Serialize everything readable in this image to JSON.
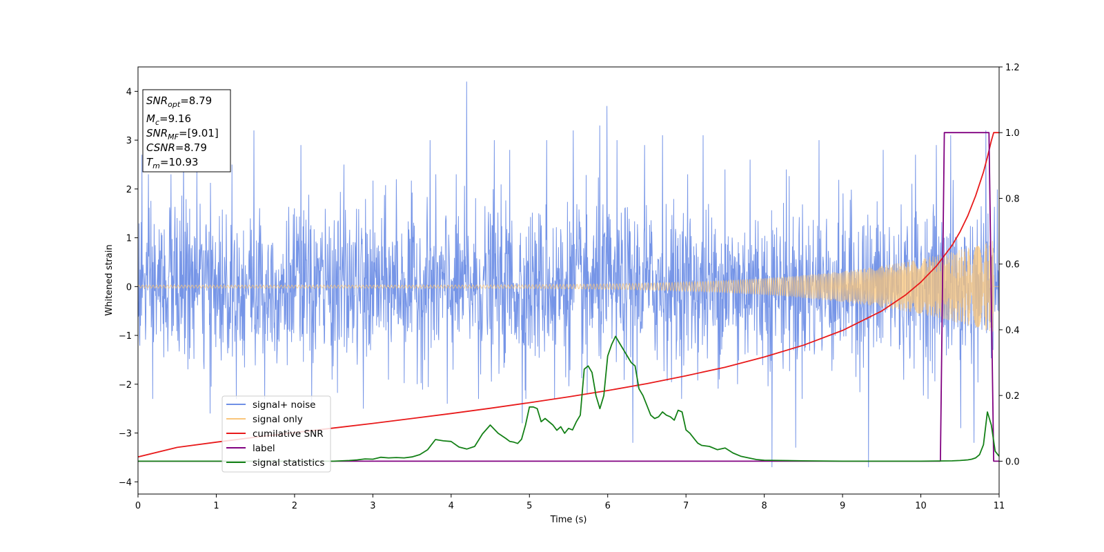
{
  "chart_data": {
    "type": "line",
    "title": "",
    "xlabel": "Time (s)",
    "ylabel": "Whitened strain",
    "xlim": [
      0,
      11
    ],
    "ylim": [
      -4.25,
      4.5
    ],
    "y2lim": [
      -0.1,
      1.2
    ],
    "x_ticks": [
      0,
      1,
      2,
      3,
      4,
      5,
      6,
      7,
      8,
      9,
      10,
      11
    ],
    "y_ticks": [
      -4,
      -3,
      -2,
      -1,
      0,
      1,
      2,
      3,
      4
    ],
    "y_tick_labels": [
      "−4",
      "−3",
      "−2",
      "−1",
      "0",
      "1",
      "2",
      "3",
      "4"
    ],
    "y2_ticks": [
      0.0,
      0.2,
      0.4,
      0.6,
      0.8,
      1.0,
      1.2
    ],
    "y2_tick_labels": [
      "0.0",
      "0.2",
      "0.4",
      "0.6",
      "0.8",
      "1.0",
      "1.2"
    ],
    "grid": false,
    "legend_position": "lower-left",
    "annotation": [
      {
        "base": "SNR",
        "sub": "opt",
        "value": "=8.79"
      },
      {
        "base": "M",
        "sub": "c",
        "value": "=9.16"
      },
      {
        "base": "SNR",
        "sub": "MF",
        "value": "=[9.01]"
      },
      {
        "base": "CSNR",
        "sub": "",
        "value": "=8.79"
      },
      {
        "base": "T",
        "sub": "m",
        "value": "=10.93"
      }
    ],
    "series": [
      {
        "name": "signal+ noise",
        "color": "#6f8fe6",
        "axis": "left",
        "kind": "noise",
        "noise_sigma": 0.8,
        "noise_band": [
          -1.8,
          1.8
        ],
        "spikes": [
          [
            0.05,
            2.7
          ],
          [
            0.19,
            -2.3
          ],
          [
            0.42,
            2.3
          ],
          [
            0.58,
            2.9
          ],
          [
            0.75,
            2.4
          ],
          [
            0.92,
            -2.6
          ],
          [
            1.2,
            2.5
          ],
          [
            1.48,
            3.2
          ],
          [
            1.62,
            -2.3
          ],
          [
            2.08,
            2.9
          ],
          [
            2.22,
            -2.4
          ],
          [
            2.63,
            2.5
          ],
          [
            2.88,
            -2.5
          ],
          [
            3.3,
            2.2
          ],
          [
            3.73,
            3.0
          ],
          [
            3.95,
            -2.4
          ],
          [
            4.2,
            4.2
          ],
          [
            4.35,
            -2.3
          ],
          [
            4.55,
            3.0
          ],
          [
            4.75,
            2.8
          ],
          [
            4.91,
            -2.8
          ],
          [
            5.22,
            3.0
          ],
          [
            5.32,
            -2.3
          ],
          [
            5.56,
            3.2
          ],
          [
            5.74,
            -2.2
          ],
          [
            5.9,
            3.3
          ],
          [
            5.99,
            3.7
          ],
          [
            6.12,
            3.0
          ],
          [
            6.32,
            -3.2
          ],
          [
            6.47,
            2.9
          ],
          [
            6.7,
            3.1
          ],
          [
            7.02,
            2.3
          ],
          [
            7.22,
            3.1
          ],
          [
            7.5,
            2.4
          ],
          [
            7.66,
            -2.0
          ],
          [
            7.82,
            2.6
          ],
          [
            8.1,
            -3.7
          ],
          [
            8.28,
            2.4
          ],
          [
            8.4,
            -3.3
          ],
          [
            8.7,
            3.0
          ],
          [
            9.33,
            -3.7
          ],
          [
            9.52,
            2.8
          ],
          [
            9.93,
            2.7
          ],
          [
            10.2,
            2.9
          ],
          [
            10.38,
            3.1
          ],
          [
            10.51,
            -2.9
          ],
          [
            10.68,
            -3.2
          ],
          [
            10.83,
            3.2
          ]
        ]
      },
      {
        "name": "signal only",
        "color": "#f9c57a",
        "axis": "left",
        "kind": "chirp",
        "amplitude_start": 0.03,
        "amplitude_end": 0.95,
        "end_x": 10.93
      },
      {
        "name": "cumilative SNR",
        "color": "#e8191a",
        "axis": "right",
        "x": [
          0,
          0.5,
          1,
          1.5,
          2,
          2.5,
          3,
          3.5,
          4,
          4.5,
          5,
          5.5,
          6,
          6.5,
          7,
          7.5,
          8,
          8.5,
          9,
          9.5,
          9.8,
          10,
          10.2,
          10.4,
          10.5,
          10.6,
          10.7,
          10.8,
          10.85,
          10.9,
          10.93,
          11
        ],
        "y": [
          0.013,
          0.042,
          0.058,
          0.073,
          0.087,
          0.101,
          0.115,
          0.13,
          0.145,
          0.161,
          0.178,
          0.196,
          0.215,
          0.236,
          0.26,
          0.286,
          0.317,
          0.353,
          0.398,
          0.457,
          0.505,
          0.545,
          0.594,
          0.657,
          0.698,
          0.747,
          0.808,
          0.88,
          0.925,
          0.975,
          1.0,
          1.0
        ]
      },
      {
        "name": "label",
        "color": "#800080",
        "axis": "right",
        "x": [
          0,
          10.25,
          10.3,
          10.87,
          10.93,
          11
        ],
        "y": [
          0,
          0,
          1,
          1,
          0,
          0
        ]
      },
      {
        "name": "signal statistics",
        "color": "#138016",
        "axis": "right",
        "x": [
          0,
          0.5,
          1,
          1.5,
          2,
          2.5,
          2.7,
          2.8,
          2.9,
          3.0,
          3.1,
          3.2,
          3.3,
          3.4,
          3.5,
          3.6,
          3.7,
          3.8,
          3.9,
          4.0,
          4.1,
          4.2,
          4.3,
          4.4,
          4.5,
          4.6,
          4.7,
          4.75,
          4.8,
          4.85,
          4.9,
          4.95,
          5.0,
          5.05,
          5.1,
          5.15,
          5.2,
          5.3,
          5.35,
          5.4,
          5.45,
          5.5,
          5.55,
          5.6,
          5.65,
          5.7,
          5.75,
          5.8,
          5.85,
          5.9,
          5.95,
          6.0,
          6.05,
          6.1,
          6.15,
          6.2,
          6.25,
          6.3,
          6.35,
          6.4,
          6.45,
          6.5,
          6.55,
          6.6,
          6.65,
          6.7,
          6.75,
          6.8,
          6.85,
          6.9,
          6.95,
          7.0,
          7.05,
          7.1,
          7.15,
          7.2,
          7.3,
          7.4,
          7.5,
          7.6,
          7.7,
          7.8,
          7.9,
          8.0,
          8.5,
          9.0,
          9.5,
          10.0,
          10.4,
          10.5,
          10.6,
          10.65,
          10.7,
          10.75,
          10.8,
          10.85,
          10.9,
          10.95,
          11
        ],
        "y": [
          0.0,
          0.0,
          0.0,
          0.0,
          0.0,
          0.0,
          0.002,
          0.004,
          0.007,
          0.006,
          0.012,
          0.01,
          0.011,
          0.01,
          0.013,
          0.02,
          0.035,
          0.066,
          0.062,
          0.06,
          0.043,
          0.037,
          0.045,
          0.083,
          0.11,
          0.085,
          0.069,
          0.06,
          0.058,
          0.054,
          0.067,
          0.11,
          0.165,
          0.165,
          0.16,
          0.12,
          0.13,
          0.11,
          0.094,
          0.105,
          0.085,
          0.1,
          0.095,
          0.12,
          0.14,
          0.28,
          0.29,
          0.27,
          0.2,
          0.16,
          0.2,
          0.32,
          0.355,
          0.38,
          0.36,
          0.34,
          0.32,
          0.3,
          0.29,
          0.22,
          0.2,
          0.17,
          0.14,
          0.13,
          0.135,
          0.15,
          0.14,
          0.135,
          0.125,
          0.155,
          0.15,
          0.095,
          0.085,
          0.07,
          0.055,
          0.048,
          0.045,
          0.035,
          0.04,
          0.025,
          0.015,
          0.01,
          0.005,
          0.003,
          0.001,
          0.0,
          0.0,
          0.0,
          0.001,
          0.002,
          0.004,
          0.006,
          0.01,
          0.02,
          0.05,
          0.15,
          0.11,
          0.03,
          0.015
        ]
      }
    ]
  }
}
